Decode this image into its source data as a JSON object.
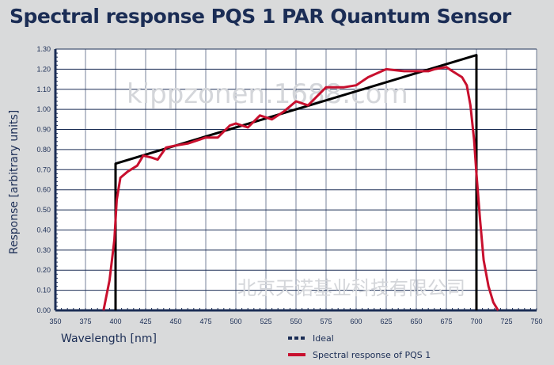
{
  "chart_data": {
    "type": "line",
    "title": "Spectral response PQS 1 PAR Quantum Sensor",
    "xlabel": "Wavelength [nm]",
    "ylabel": "Response [arbitrary units]",
    "xlim": [
      350,
      750
    ],
    "ylim": [
      0,
      1.3
    ],
    "xticks": [
      "350",
      "375",
      "400",
      "425",
      "450",
      "475",
      "500",
      "525",
      "550",
      "575",
      "600",
      "625",
      "650",
      "675",
      "700",
      "725",
      "750"
    ],
    "yticks": [
      "0.00",
      "0.10",
      "0.20",
      "0.30",
      "0.40",
      "0.50",
      "0.60",
      "0.70",
      "0.80",
      "0.90",
      "1.00",
      "1.10",
      "1.20",
      "1.30"
    ],
    "grid": true,
    "legend_position": "bottom-right",
    "series": [
      {
        "name": "Ideal",
        "color": "#000000",
        "points": [
          [
            400,
            0
          ],
          [
            400,
            0.73
          ],
          [
            700,
            1.27
          ],
          [
            700,
            0
          ]
        ]
      },
      {
        "name": "Spectral response of PQS 1",
        "color": "#c8102e",
        "points": [
          [
            390,
            0
          ],
          [
            395,
            0.15
          ],
          [
            399,
            0.35
          ],
          [
            401,
            0.55
          ],
          [
            404,
            0.66
          ],
          [
            410,
            0.69
          ],
          [
            418,
            0.72
          ],
          [
            423,
            0.77
          ],
          [
            430,
            0.76
          ],
          [
            435,
            0.75
          ],
          [
            442,
            0.81
          ],
          [
            450,
            0.82
          ],
          [
            460,
            0.83
          ],
          [
            475,
            0.86
          ],
          [
            485,
            0.86
          ],
          [
            495,
            0.92
          ],
          [
            500,
            0.93
          ],
          [
            510,
            0.91
          ],
          [
            520,
            0.97
          ],
          [
            525,
            0.96
          ],
          [
            530,
            0.95
          ],
          [
            540,
            0.99
          ],
          [
            550,
            1.04
          ],
          [
            555,
            1.03
          ],
          [
            560,
            1.02
          ],
          [
            570,
            1.08
          ],
          [
            575,
            1.11
          ],
          [
            590,
            1.11
          ],
          [
            600,
            1.12
          ],
          [
            610,
            1.16
          ],
          [
            625,
            1.2
          ],
          [
            640,
            1.19
          ],
          [
            660,
            1.19
          ],
          [
            665,
            1.2
          ],
          [
            675,
            1.21
          ],
          [
            680,
            1.19
          ],
          [
            688,
            1.16
          ],
          [
            692,
            1.12
          ],
          [
            695,
            1.02
          ],
          [
            698,
            0.85
          ],
          [
            700,
            0.68
          ],
          [
            703,
            0.45
          ],
          [
            706,
            0.25
          ],
          [
            710,
            0.12
          ],
          [
            714,
            0.04
          ],
          [
            718,
            0
          ]
        ]
      }
    ]
  },
  "watermarks": [
    "北京天诺基业科技有限公司",
    "kippzonen.1688.com"
  ]
}
